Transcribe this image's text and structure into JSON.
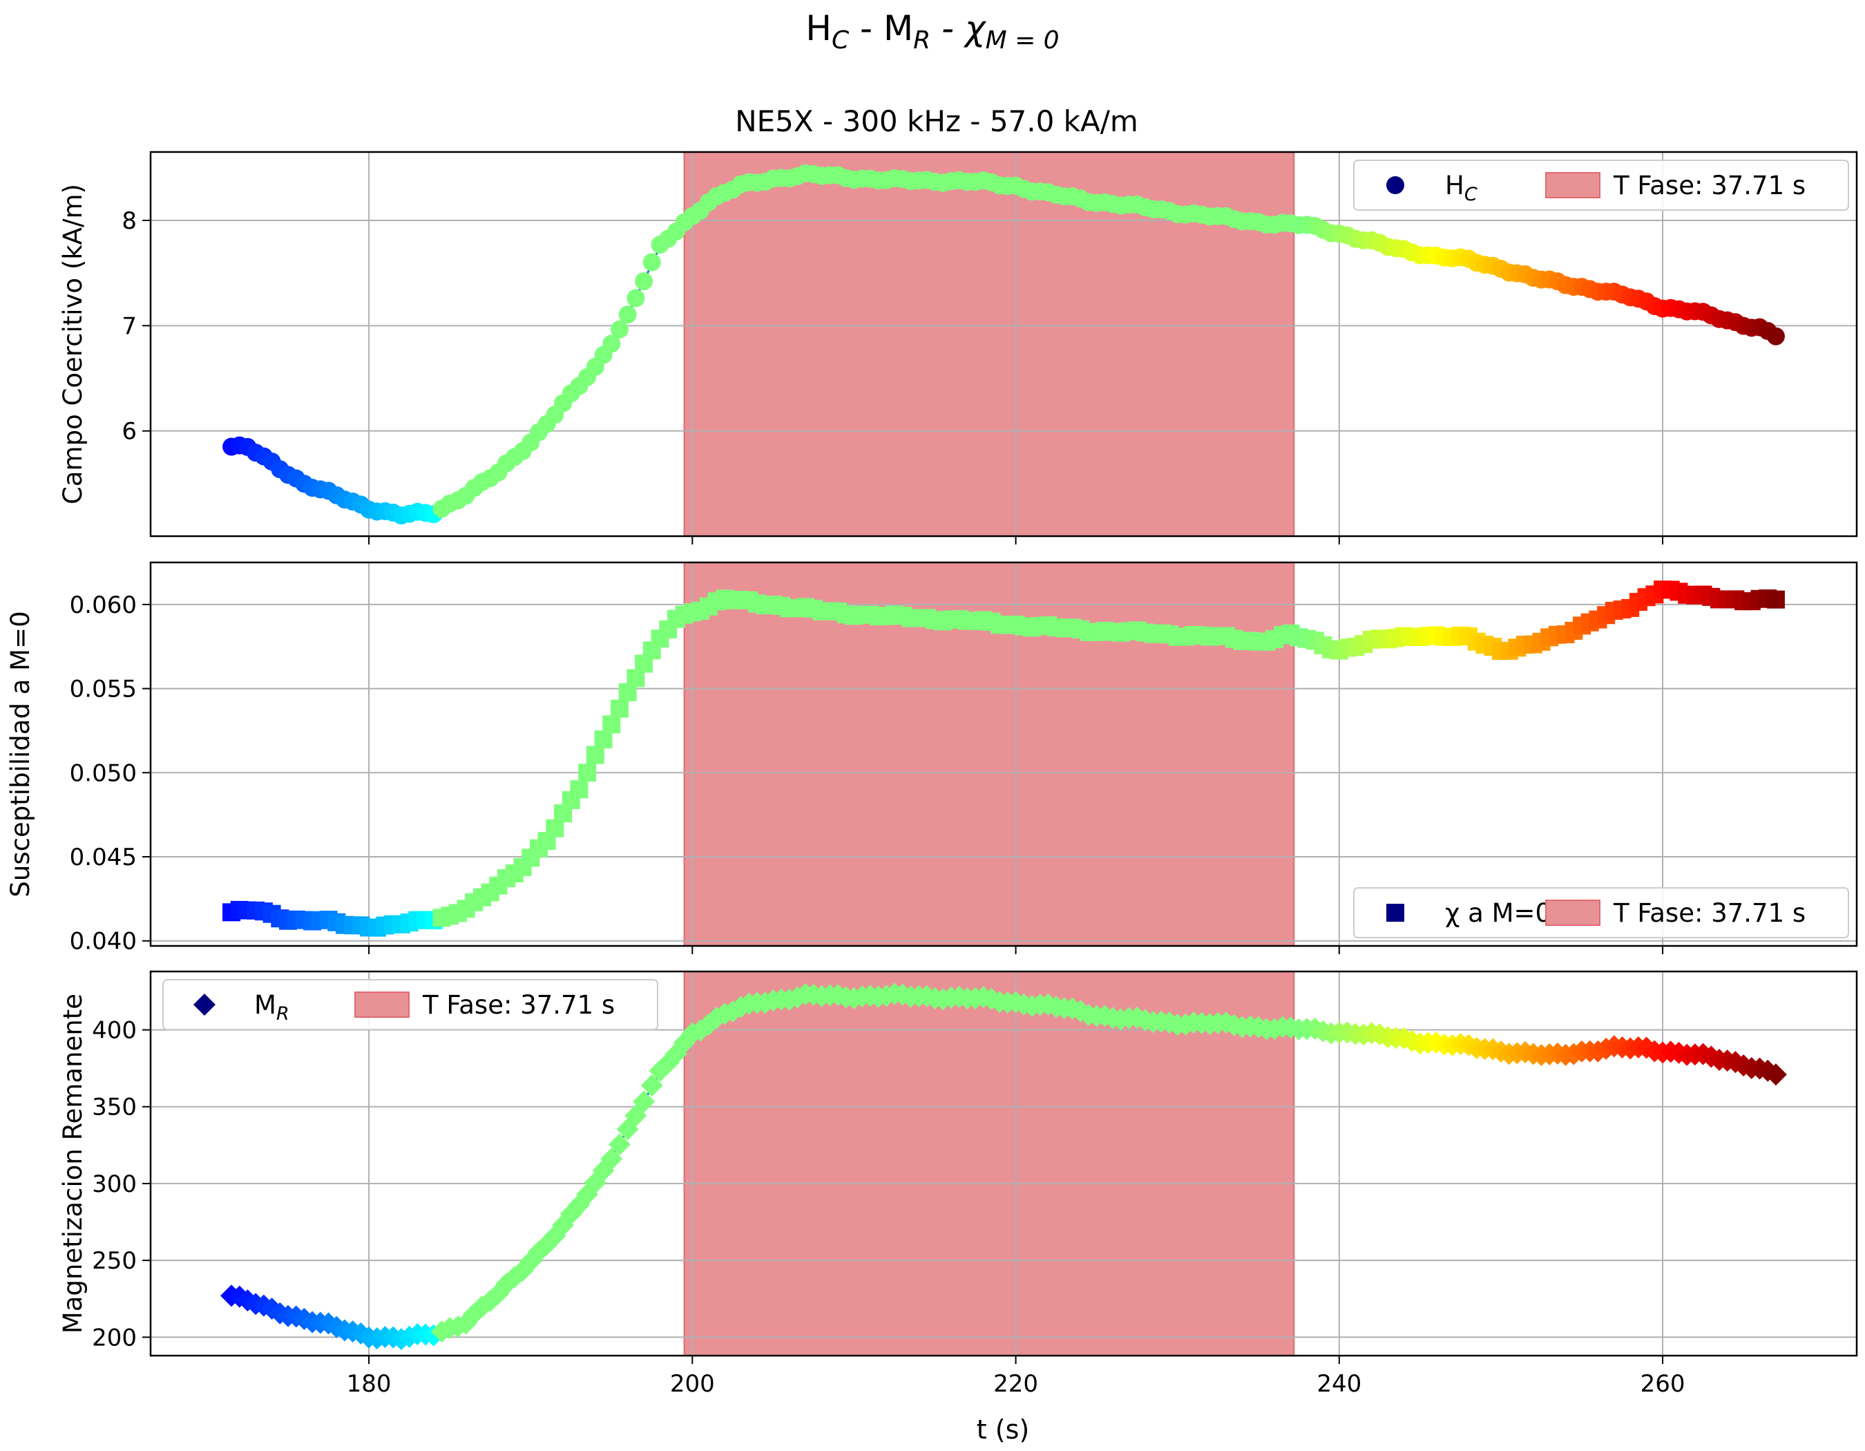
{
  "figure": {
    "suptitle": {
      "main1": "H",
      "sub1": "C",
      "main2": " - M",
      "sub2": "R",
      "main3": " - χ",
      "sub3": "M = 0"
    },
    "subtitle": "NE5X - 300 kHz - 57.0 kA/m",
    "xlabel": "t (s)",
    "x_ticks": [
      "180",
      "200",
      "220",
      "240",
      "260"
    ]
  },
  "chart_data": [
    {
      "type": "scatter",
      "marker": "circle",
      "ylabel": "Campo Coercitivo (kA/m)",
      "ylim": [
        5.0,
        8.65
      ],
      "xlim": [
        166.5,
        272.0
      ],
      "y_ticks": [
        "6",
        "7",
        "8"
      ],
      "legend": {
        "position": "top-right",
        "series_main": "H",
        "series_sub": "C",
        "band_label": "T Fase: 37.71 s"
      },
      "band": {
        "x_start": 199.5,
        "x_end": 237.2,
        "color": "#e89296"
      },
      "keyframes": [
        [
          171.5,
          5.85
        ],
        [
          172.5,
          5.84
        ],
        [
          174,
          5.7
        ],
        [
          176,
          5.5
        ],
        [
          178,
          5.38
        ],
        [
          180,
          5.27
        ],
        [
          182,
          5.2
        ],
        [
          184,
          5.22
        ],
        [
          186,
          5.4
        ],
        [
          188,
          5.6
        ],
        [
          190,
          5.9
        ],
        [
          192,
          6.25
        ],
        [
          194,
          6.6
        ],
        [
          196,
          7.1
        ],
        [
          198,
          7.75
        ],
        [
          199.5,
          7.98
        ],
        [
          201,
          8.18
        ],
        [
          203,
          8.33
        ],
        [
          205,
          8.4
        ],
        [
          207,
          8.43
        ],
        [
          209,
          8.42
        ],
        [
          212,
          8.38
        ],
        [
          215,
          8.38
        ],
        [
          218,
          8.36
        ],
        [
          220,
          8.33
        ],
        [
          222,
          8.25
        ],
        [
          225,
          8.18
        ],
        [
          228,
          8.12
        ],
        [
          230,
          8.08
        ],
        [
          233,
          8.02
        ],
        [
          236,
          7.97
        ],
        [
          238,
          7.95
        ],
        [
          240,
          7.88
        ],
        [
          243,
          7.75
        ],
        [
          246,
          7.66
        ],
        [
          248,
          7.62
        ],
        [
          250,
          7.55
        ],
        [
          252,
          7.45
        ],
        [
          255,
          7.37
        ],
        [
          258,
          7.27
        ],
        [
          260,
          7.18
        ],
        [
          262,
          7.13
        ],
        [
          264,
          7.05
        ],
        [
          266,
          6.98
        ],
        [
          267,
          6.9
        ]
      ]
    },
    {
      "type": "scatter",
      "marker": "square",
      "ylabel": "Susceptibilidad a M=0",
      "ylim": [
        0.0397,
        0.0625
      ],
      "xlim": [
        166.5,
        272.0
      ],
      "y_ticks": [
        "0.040",
        "0.045",
        "0.050",
        "0.055",
        "0.060"
      ],
      "legend": {
        "position": "lower-right",
        "series_main": "χ a M=0",
        "series_sub": "",
        "band_label": "T Fase: 37.71 s"
      },
      "band": {
        "x_start": 199.5,
        "x_end": 237.2,
        "color": "#e89296"
      },
      "keyframes": [
        [
          171.5,
          0.0417
        ],
        [
          173,
          0.0418
        ],
        [
          175,
          0.0413
        ],
        [
          177,
          0.0412
        ],
        [
          179,
          0.0409
        ],
        [
          181,
          0.0409
        ],
        [
          183,
          0.0411
        ],
        [
          185,
          0.0415
        ],
        [
          187,
          0.0425
        ],
        [
          189,
          0.044
        ],
        [
          191,
          0.046
        ],
        [
          193,
          0.049
        ],
        [
          195,
          0.053
        ],
        [
          197,
          0.0565
        ],
        [
          199,
          0.0592
        ],
        [
          202,
          0.0603
        ],
        [
          205,
          0.06
        ],
        [
          208,
          0.0596
        ],
        [
          212,
          0.0593
        ],
        [
          216,
          0.0591
        ],
        [
          220,
          0.0588
        ],
        [
          224,
          0.0585
        ],
        [
          228,
          0.0583
        ],
        [
          232,
          0.0581
        ],
        [
          235,
          0.0578
        ],
        [
          237,
          0.0582
        ],
        [
          240,
          0.0573
        ],
        [
          242,
          0.0578
        ],
        [
          245,
          0.0582
        ],
        [
          248,
          0.058
        ],
        [
          250,
          0.0573
        ],
        [
          252,
          0.0576
        ],
        [
          254,
          0.0583
        ],
        [
          256,
          0.0592
        ],
        [
          258,
          0.0598
        ],
        [
          260,
          0.061
        ],
        [
          262,
          0.0605
        ],
        [
          264,
          0.0603
        ],
        [
          267,
          0.0603
        ]
      ]
    },
    {
      "type": "scatter",
      "marker": "diamond",
      "ylabel": "Magnetizacion Remanente",
      "ylim": [
        188,
        438
      ],
      "xlim": [
        166.5,
        272.0
      ],
      "y_ticks": [
        "200",
        "250",
        "300",
        "350",
        "400"
      ],
      "legend": {
        "position": "top-left",
        "series_main": "M",
        "series_sub": "R",
        "band_label": "T Fase: 37.71 s"
      },
      "band": {
        "x_start": 199.5,
        "x_end": 237.2,
        "color": "#e89296"
      },
      "keyframes": [
        [
          171.5,
          227
        ],
        [
          174,
          218
        ],
        [
          176,
          212
        ],
        [
          178,
          206
        ],
        [
          180,
          201
        ],
        [
          182,
          199
        ],
        [
          184,
          202
        ],
        [
          186,
          210
        ],
        [
          188,
          228
        ],
        [
          190,
          250
        ],
        [
          192,
          272
        ],
        [
          194,
          300
        ],
        [
          196,
          335
        ],
        [
          198,
          372
        ],
        [
          200,
          398
        ],
        [
          202,
          410
        ],
        [
          204,
          418
        ],
        [
          207,
          422
        ],
        [
          210,
          422
        ],
        [
          214,
          422
        ],
        [
          218,
          420
        ],
        [
          220,
          418
        ],
        [
          223,
          414
        ],
        [
          226,
          408
        ],
        [
          229,
          405
        ],
        [
          232,
          404
        ],
        [
          235,
          402
        ],
        [
          238,
          400
        ],
        [
          241,
          398
        ],
        [
          244,
          394
        ],
        [
          247,
          390
        ],
        [
          249,
          388
        ],
        [
          251,
          385
        ],
        [
          253,
          383
        ],
        [
          255,
          386
        ],
        [
          257,
          388
        ],
        [
          259,
          388
        ],
        [
          261,
          385
        ],
        [
          263,
          382
        ],
        [
          265,
          378
        ],
        [
          267,
          371
        ]
      ]
    }
  ]
}
